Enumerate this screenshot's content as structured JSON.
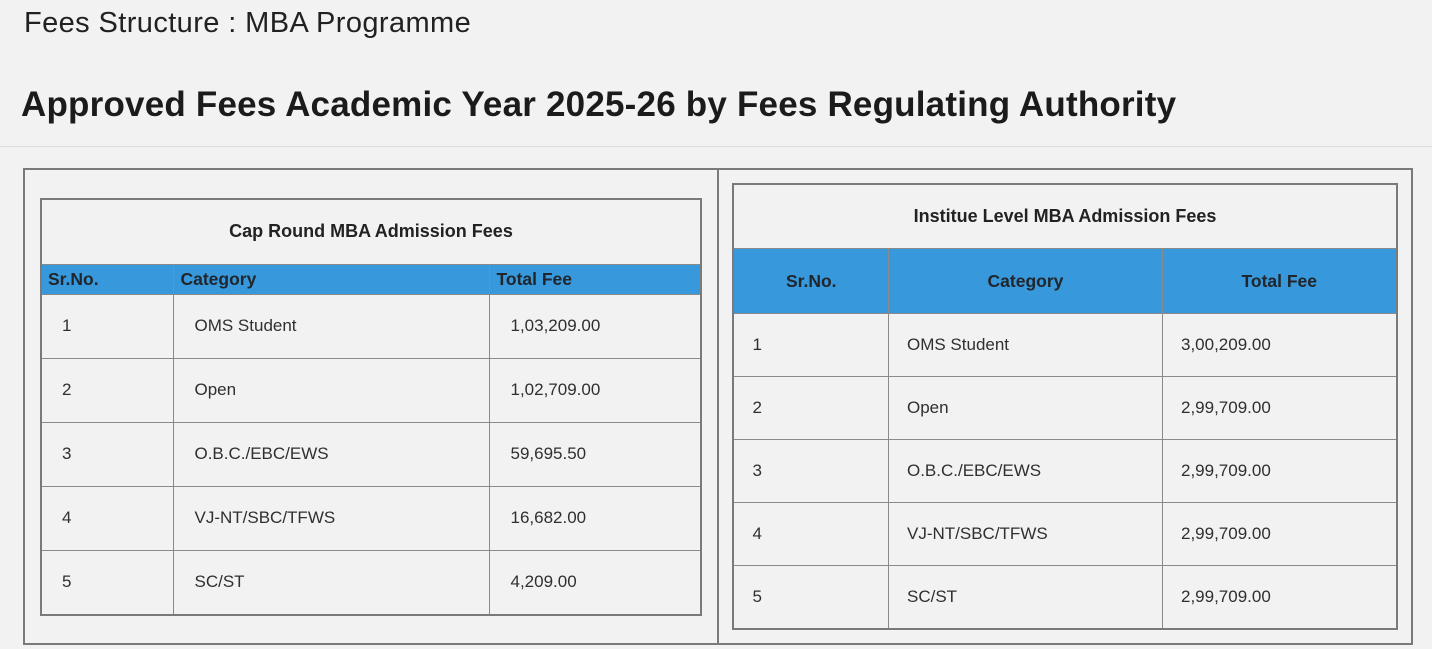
{
  "page": {
    "title": "Fees Structure : MBA Programme",
    "heading": "Approved Fees Academic Year 2025-26 by Fees Regulating Authority"
  },
  "colors": {
    "background": "#f2f2f2",
    "header_blue": "#3798db",
    "table_border": "#7a7a7a",
    "cell_border": "#8a8a8a",
    "divider": "#dcdcdc",
    "text": "#2f2f2f"
  },
  "tables": [
    {
      "title": "Cap Round MBA Admission Fees",
      "columns": [
        "Sr.No.",
        "Category",
        "Total Fee"
      ],
      "rows": [
        [
          "1",
          "OMS Student",
          "1,03,209.00"
        ],
        [
          "2",
          "Open",
          "1,02,709.00"
        ],
        [
          "3",
          "O.B.C./EBC/EWS",
          "59,695.50"
        ],
        [
          "4",
          "VJ-NT/SBC/TFWS",
          "16,682.00"
        ],
        [
          "5",
          "SC/ST",
          "4,209.00"
        ]
      ]
    },
    {
      "title": "Institue Level  MBA Admission Fees",
      "columns": [
        "Sr.No.",
        "Category",
        "Total Fee"
      ],
      "rows": [
        [
          "1",
          "OMS Student",
          "3,00,209.00"
        ],
        [
          "2",
          "Open",
          "2,99,709.00"
        ],
        [
          "3",
          "O.B.C./EBC/EWS",
          "2,99,709.00"
        ],
        [
          "4",
          "VJ-NT/SBC/TFWS",
          "2,99,709.00"
        ],
        [
          "5",
          "SC/ST",
          "2,99,709.00"
        ]
      ]
    }
  ]
}
